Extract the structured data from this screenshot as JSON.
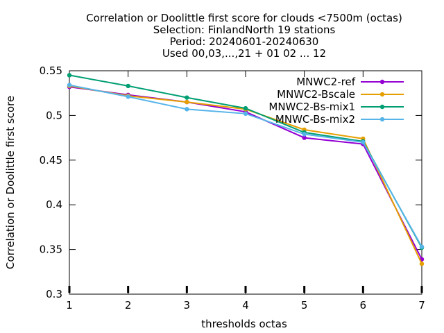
{
  "chart_data": {
    "type": "line",
    "title_lines": [
      "Correlation or Doolittle first score  for clouds <7500m (octas)",
      "Selection: FinlandNorth     19 stations",
      "Period: 20240601-20240630",
      "Used 00,03,...,21 + 01 02 ... 12"
    ],
    "xlabel": "thresholds octas",
    "ylabel": "Correlation or Doolittle first score",
    "x": [
      1,
      2,
      3,
      4,
      5,
      6,
      7
    ],
    "xlim": [
      1,
      7
    ],
    "ylim": [
      0.3,
      0.55
    ],
    "x_ticks": [
      "1",
      "2",
      "3",
      "4",
      "5",
      "6",
      "7"
    ],
    "y_ticks": [
      "0.3",
      "0.35",
      "0.4",
      "0.45",
      "0.5",
      "0.55"
    ],
    "grid": false,
    "legend_position": "top-right",
    "series": [
      {
        "name": "MNWC2-ref",
        "color": "#9400d3",
        "values": [
          0.532,
          0.523,
          0.515,
          0.504,
          0.475,
          0.468,
          0.339
        ]
      },
      {
        "name": "MNWC2-Bscale",
        "color": "#e69f00",
        "values": [
          0.533,
          0.522,
          0.515,
          0.507,
          0.484,
          0.474,
          0.334
        ]
      },
      {
        "name": "MNWC2-Bs-mix1",
        "color": "#009e73",
        "values": [
          0.545,
          0.533,
          0.52,
          0.508,
          0.481,
          0.471,
          0.352
        ]
      },
      {
        "name": "MNWC-Bs-mix2",
        "color": "#56b4e9",
        "values": [
          0.534,
          0.521,
          0.507,
          0.502,
          0.479,
          0.47,
          0.353
        ]
      }
    ]
  }
}
